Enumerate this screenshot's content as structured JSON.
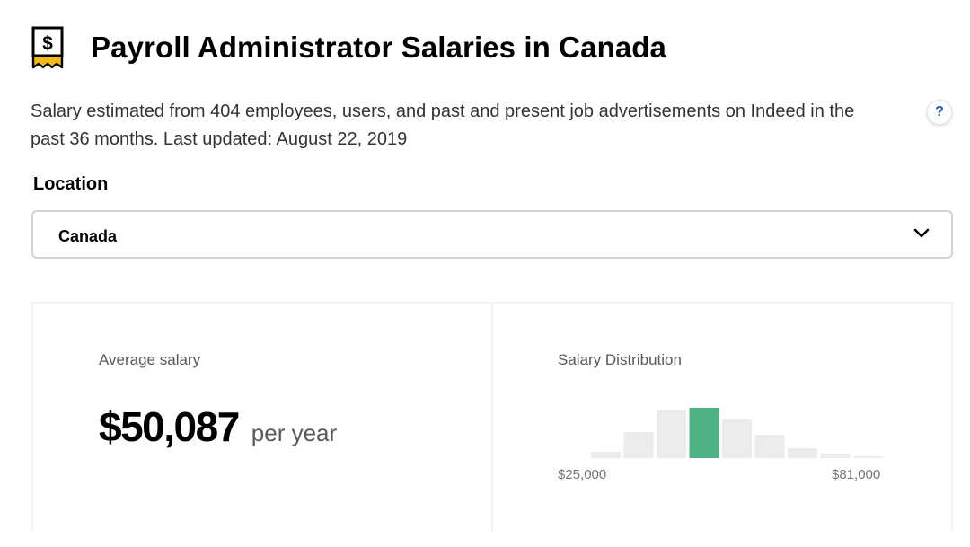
{
  "header": {
    "icon": "salary-receipt-icon",
    "title": "Payroll Administrator Salaries in Canada"
  },
  "description": "Salary estimated from 404 employees, users, and past and present job advertisements on Indeed in the past 36 months. Last updated: August 22, 2019",
  "help": {
    "label": "?",
    "icon": "help-icon"
  },
  "location": {
    "label": "Location",
    "selected": "Canada",
    "icon": "chevron-down-icon"
  },
  "average": {
    "label": "Average salary",
    "amount": "$50,087",
    "period": "per year"
  },
  "distribution": {
    "label": "Salary Distribution",
    "min_label": "$25,000",
    "max_label": "$81,000"
  },
  "chart_data": {
    "type": "bar",
    "title": "Salary Distribution",
    "values": [
      0.13,
      0.52,
      0.95,
      1.0,
      0.77,
      0.46,
      0.2,
      0.07,
      0.02
    ],
    "highlight_index": 3,
    "x_min_label": "$25,000",
    "x_max_label": "$81,000",
    "bar_color": "#ececec",
    "highlight_color": "#4fb286"
  },
  "colors": {
    "accent": "#4fb286",
    "help_text": "#2557a7",
    "logo_gold": "#f2b91c"
  }
}
